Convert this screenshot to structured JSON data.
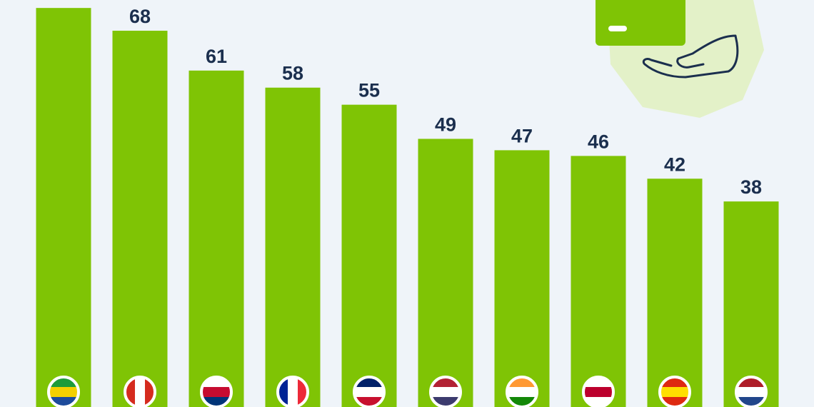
{
  "chart_data": {
    "type": "bar",
    "categories": [
      null,
      null,
      null,
      null,
      null,
      null,
      null,
      null,
      null,
      null
    ],
    "values": [
      72,
      68,
      61,
      58,
      55,
      49,
      47,
      46,
      42,
      38
    ],
    "color": "#7fc405",
    "ylim": [
      0,
      73.4
    ]
  }
}
